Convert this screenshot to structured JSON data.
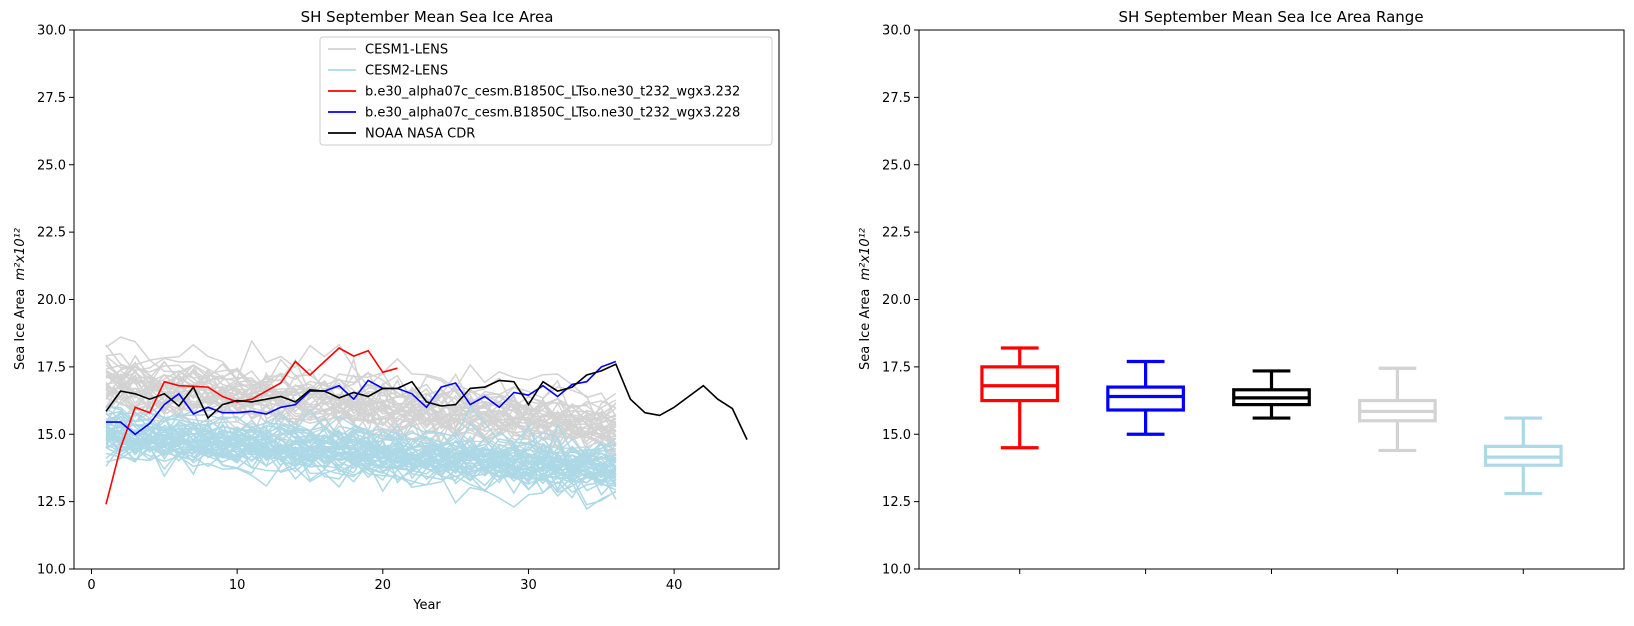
{
  "chart_data": [
    {
      "type": "line",
      "title": "SH September Mean Sea Ice Area",
      "xlabel": "Year",
      "ylabel": "Sea Ice Area",
      "ylabel_unit": "m²x10¹²",
      "xlim": [
        -1.2,
        47.2
      ],
      "ylim": [
        10.0,
        30.0
      ],
      "xticks": [
        0,
        10,
        20,
        30,
        40
      ],
      "yticks": [
        "10.0",
        "12.5",
        "15.0",
        "17.5",
        "20.0",
        "22.5",
        "25.0",
        "27.5",
        "30.0"
      ],
      "grid": false,
      "legend_position": "upper center",
      "ensembles": [
        {
          "name": "CESM1-LENS",
          "color": "#d3d3d3",
          "x_range": [
            1,
            36
          ],
          "member_count": 40,
          "start_mean": 16.9,
          "end_mean": 15.3,
          "spread": 0.55,
          "noise": 0.35,
          "seed": 11
        },
        {
          "name": "CESM2-LENS",
          "color": "#add8e6",
          "x_range": [
            1,
            36
          ],
          "member_count": 50,
          "start_mean": 14.9,
          "end_mean": 13.6,
          "spread": 0.35,
          "noise": 0.3,
          "seed": 29
        }
      ],
      "series": [
        {
          "name": "b.e30_alpha07c_cesm.B1850C_LTso.ne30_t232_wgx3.232",
          "color": "#ff0000",
          "x": [
            1,
            2,
            3,
            4,
            5,
            6,
            7,
            8,
            9,
            10,
            11,
            12,
            13,
            14,
            15,
            16,
            17,
            18,
            19,
            20,
            21
          ],
          "y": [
            12.4,
            14.5,
            16.0,
            15.8,
            16.95,
            16.8,
            16.78,
            16.75,
            16.4,
            16.2,
            16.3,
            16.6,
            16.9,
            17.7,
            17.2,
            17.7,
            18.2,
            17.9,
            18.1,
            17.3,
            17.45
          ]
        },
        {
          "name": "b.e30_alpha07c_cesm.B1850C_LTso.ne30_t232_wgx3.228",
          "color": "#0000ff",
          "x": [
            1,
            2,
            3,
            4,
            5,
            6,
            7,
            8,
            9,
            10,
            11,
            12,
            13,
            14,
            15,
            16,
            17,
            18,
            19,
            20,
            21,
            22,
            23,
            24,
            25,
            26,
            27,
            28,
            29,
            30,
            31,
            32,
            33,
            34,
            35,
            36
          ],
          "y": [
            15.45,
            15.45,
            15.0,
            15.4,
            16.1,
            16.5,
            15.75,
            16.0,
            15.8,
            15.8,
            15.85,
            15.75,
            16.0,
            16.1,
            16.6,
            16.6,
            16.8,
            16.3,
            17.0,
            16.7,
            16.7,
            16.5,
            16.0,
            16.75,
            16.9,
            16.1,
            16.4,
            16.0,
            16.55,
            16.45,
            16.8,
            16.4,
            16.85,
            16.95,
            17.5,
            17.7
          ]
        },
        {
          "name": "NOAA NASA CDR",
          "color": "#000000",
          "x": [
            1,
            2,
            3,
            4,
            5,
            6,
            7,
            8,
            9,
            10,
            11,
            12,
            13,
            14,
            15,
            16,
            17,
            18,
            19,
            20,
            21,
            22,
            23,
            24,
            25,
            26,
            27,
            28,
            29,
            30,
            31,
            32,
            33,
            34,
            35,
            36,
            37,
            38,
            39,
            40,
            41,
            42,
            43,
            44,
            45
          ],
          "y": [
            15.85,
            16.6,
            16.5,
            16.3,
            16.5,
            16.05,
            16.75,
            15.6,
            16.1,
            16.25,
            16.2,
            16.3,
            16.4,
            16.2,
            16.65,
            16.6,
            16.35,
            16.55,
            16.4,
            16.7,
            16.7,
            16.95,
            16.2,
            16.05,
            16.1,
            16.7,
            16.75,
            17.0,
            16.95,
            16.1,
            16.95,
            16.6,
            16.75,
            17.2,
            17.35,
            17.6,
            16.3,
            15.8,
            15.7,
            16.0,
            16.4,
            16.8,
            16.3,
            15.95,
            14.8
          ]
        }
      ]
    },
    {
      "type": "box",
      "title": "SH September Mean Sea Ice Area Range",
      "ylabel": "Sea Ice Area",
      "ylabel_unit": "m²x10¹²",
      "ylim": [
        10.0,
        30.0
      ],
      "yticks": [
        "10.0",
        "12.5",
        "15.0",
        "17.5",
        "20.0",
        "22.5",
        "25.0",
        "27.5",
        "30.0"
      ],
      "grid": false,
      "boxes": [
        {
          "color": "#ff0000",
          "min": 14.5,
          "q1": 16.25,
          "median": 16.8,
          "q3": 17.5,
          "max": 18.2
        },
        {
          "color": "#0000ff",
          "min": 15.0,
          "q1": 15.9,
          "median": 16.4,
          "q3": 16.75,
          "max": 17.7
        },
        {
          "color": "#000000",
          "min": 15.6,
          "q1": 16.1,
          "median": 16.35,
          "q3": 16.65,
          "max": 17.35
        },
        {
          "color": "#d3d3d3",
          "min": 14.4,
          "q1": 15.5,
          "median": 15.85,
          "q3": 16.25,
          "max": 17.45
        },
        {
          "color": "#add8e6",
          "min": 12.8,
          "q1": 13.85,
          "median": 14.15,
          "q3": 14.55,
          "max": 15.6
        }
      ]
    }
  ]
}
